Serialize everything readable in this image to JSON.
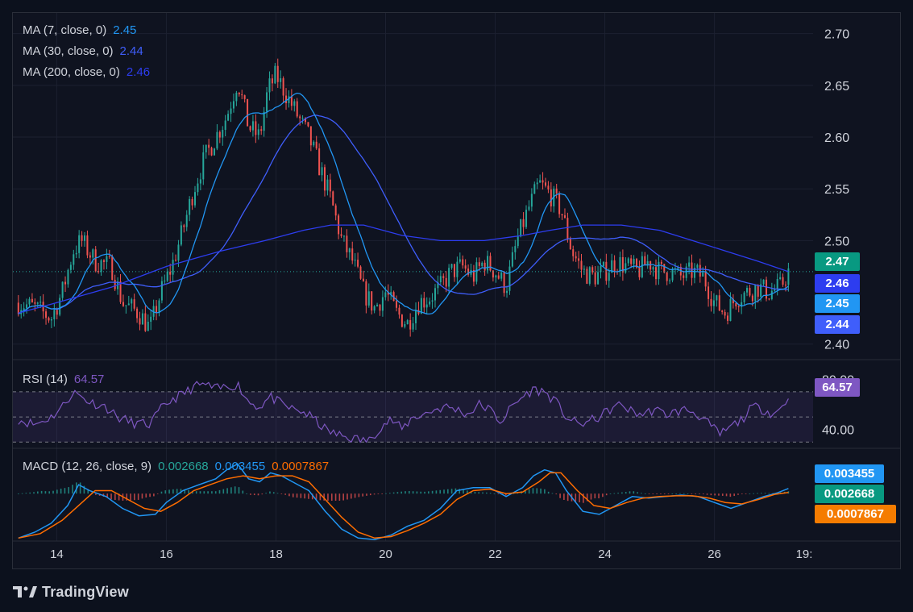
{
  "chart_data": [
    {
      "type": "candlestick",
      "ylim": [
        2.385,
        2.72
      ],
      "yticks": [
        "2.70",
        "2.65",
        "2.60",
        "2.55",
        "2.50",
        "2.40"
      ],
      "xticks": [
        "14",
        "16",
        "18",
        "20",
        "22",
        "24",
        "26",
        "19:"
      ],
      "last_close": 2.47,
      "grid": true,
      "close_path": [
        [
          13.3,
          2.44
        ],
        [
          13.6,
          2.435
        ],
        [
          13.9,
          2.425
        ],
        [
          14.1,
          2.45
        ],
        [
          14.3,
          2.49
        ],
        [
          14.45,
          2.5
        ],
        [
          14.7,
          2.48
        ],
        [
          15.0,
          2.475
        ],
        [
          15.2,
          2.44
        ],
        [
          15.5,
          2.43
        ],
        [
          15.7,
          2.415
        ],
        [
          15.9,
          2.45
        ],
        [
          16.1,
          2.475
        ],
        [
          16.3,
          2.51
        ],
        [
          16.5,
          2.55
        ],
        [
          16.7,
          2.58
        ],
        [
          16.9,
          2.6
        ],
        [
          17.1,
          2.62
        ],
        [
          17.3,
          2.655
        ],
        [
          17.5,
          2.61
        ],
        [
          17.7,
          2.6
        ],
        [
          17.85,
          2.645
        ],
        [
          18.0,
          2.66
        ],
        [
          18.2,
          2.64
        ],
        [
          18.4,
          2.62
        ],
        [
          18.6,
          2.6
        ],
        [
          18.8,
          2.57
        ],
        [
          19.0,
          2.54
        ],
        [
          19.2,
          2.5
        ],
        [
          19.4,
          2.48
        ],
        [
          19.6,
          2.45
        ],
        [
          19.8,
          2.435
        ],
        [
          20.0,
          2.45
        ],
        [
          20.2,
          2.43
        ],
        [
          20.4,
          2.42
        ],
        [
          20.6,
          2.44
        ],
        [
          20.8,
          2.445
        ],
        [
          21.0,
          2.455
        ],
        [
          21.2,
          2.47
        ],
        [
          21.4,
          2.475
        ],
        [
          21.6,
          2.465
        ],
        [
          21.8,
          2.48
        ],
        [
          22.0,
          2.47
        ],
        [
          22.2,
          2.455
        ],
        [
          22.4,
          2.5
        ],
        [
          22.6,
          2.53
        ],
        [
          22.8,
          2.555
        ],
        [
          23.0,
          2.545
        ],
        [
          23.2,
          2.53
        ],
        [
          23.4,
          2.49
        ],
        [
          23.6,
          2.47
        ],
        [
          23.8,
          2.465
        ],
        [
          24.0,
          2.47
        ],
        [
          24.2,
          2.48
        ],
        [
          24.4,
          2.475
        ],
        [
          24.6,
          2.47
        ],
        [
          24.8,
          2.48
        ],
        [
          25.0,
          2.47
        ],
        [
          25.2,
          2.47
        ],
        [
          25.4,
          2.465
        ],
        [
          25.6,
          2.47
        ],
        [
          25.8,
          2.465
        ],
        [
          26.0,
          2.44
        ],
        [
          26.2,
          2.43
        ],
        [
          26.4,
          2.445
        ],
        [
          26.6,
          2.45
        ],
        [
          26.8,
          2.455
        ],
        [
          27.0,
          2.45
        ],
        [
          27.2,
          2.455
        ],
        [
          27.35,
          2.47
        ]
      ],
      "series": [
        {
          "name": "MA (7, close, 0)",
          "value": 2.45,
          "color": "#2196f3",
          "window": 3
        },
        {
          "name": "MA (30, close, 0)",
          "value": 2.44,
          "color": "#3f5efb",
          "window": 10
        },
        {
          "name": "MA (200, close, 0)",
          "value": 2.46,
          "color": "#2d3df0",
          "points": [
            [
              13.3,
              2.43
            ],
            [
              14.0,
              2.44
            ],
            [
              15.0,
              2.455
            ],
            [
              16.0,
              2.475
            ],
            [
              17.0,
              2.49
            ],
            [
              17.8,
              2.5
            ],
            [
              18.5,
              2.51
            ],
            [
              19.0,
              2.515
            ],
            [
              19.6,
              2.515
            ],
            [
              20.3,
              2.505
            ],
            [
              21.0,
              2.5
            ],
            [
              21.8,
              2.5
            ],
            [
              22.5,
              2.505
            ],
            [
              23.0,
              2.51
            ],
            [
              23.6,
              2.515
            ],
            [
              24.3,
              2.515
            ],
            [
              25.0,
              2.51
            ],
            [
              25.6,
              2.5
            ],
            [
              26.2,
              2.49
            ],
            [
              26.8,
              2.48
            ],
            [
              27.35,
              2.47
            ]
          ]
        }
      ],
      "last_price_label": "2.47",
      "price_labels": [
        "2.46",
        "2.45",
        "2.44"
      ]
    },
    {
      "type": "line",
      "name": "RSI (14)",
      "value": 64.57,
      "value_label": "64.57",
      "color": "#7e57c2",
      "yticks": [
        "80.00",
        "40.00"
      ],
      "ylim": [
        25,
        95
      ],
      "bands": [
        70,
        50,
        30
      ],
      "points": [
        [
          13.3,
          48
        ],
        [
          13.6,
          44
        ],
        [
          13.9,
          50
        ],
        [
          14.1,
          58
        ],
        [
          14.3,
          70
        ],
        [
          14.6,
          62
        ],
        [
          14.9,
          58
        ],
        [
          15.1,
          50
        ],
        [
          15.4,
          45
        ],
        [
          15.7,
          44
        ],
        [
          15.9,
          56
        ],
        [
          16.1,
          64
        ],
        [
          16.3,
          68
        ],
        [
          16.5,
          74
        ],
        [
          16.7,
          76
        ],
        [
          16.9,
          72
        ],
        [
          17.1,
          74
        ],
        [
          17.3,
          76
        ],
        [
          17.5,
          62
        ],
        [
          17.7,
          58
        ],
        [
          17.9,
          66
        ],
        [
          18.1,
          60
        ],
        [
          18.3,
          56
        ],
        [
          18.5,
          54
        ],
        [
          18.7,
          48
        ],
        [
          18.9,
          40
        ],
        [
          19.1,
          36
        ],
        [
          19.3,
          34
        ],
        [
          19.5,
          32
        ],
        [
          19.7,
          31
        ],
        [
          19.9,
          42
        ],
        [
          20.1,
          48
        ],
        [
          20.3,
          40
        ],
        [
          20.5,
          50
        ],
        [
          20.7,
          52
        ],
        [
          20.9,
          56
        ],
        [
          21.1,
          58
        ],
        [
          21.3,
          56
        ],
        [
          21.5,
          52
        ],
        [
          21.7,
          60
        ],
        [
          21.9,
          56
        ],
        [
          22.1,
          46
        ],
        [
          22.3,
          58
        ],
        [
          22.5,
          66
        ],
        [
          22.7,
          72
        ],
        [
          22.9,
          70
        ],
        [
          23.1,
          62
        ],
        [
          23.3,
          50
        ],
        [
          23.5,
          44
        ],
        [
          23.7,
          46
        ],
        [
          23.9,
          50
        ],
        [
          24.1,
          56
        ],
        [
          24.3,
          60
        ],
        [
          24.5,
          54
        ],
        [
          24.7,
          52
        ],
        [
          24.9,
          56
        ],
        [
          25.1,
          52
        ],
        [
          25.3,
          54
        ],
        [
          25.5,
          56
        ],
        [
          25.7,
          52
        ],
        [
          25.9,
          44
        ],
        [
          26.1,
          36
        ],
        [
          26.3,
          42
        ],
        [
          26.5,
          48
        ],
        [
          26.7,
          58
        ],
        [
          26.9,
          56
        ],
        [
          27.1,
          52
        ],
        [
          27.35,
          64.57
        ]
      ]
    },
    {
      "type": "bar+line",
      "name": "MACD (12, 26, close, 9)",
      "values": {
        "histogram": "0.002668",
        "macd": "0.003455",
        "signal": "0.0007867"
      },
      "colors": {
        "histogram": "#26a69a",
        "macd": "#2196f3",
        "signal": "#ff6d00"
      },
      "ylim": [
        -0.032,
        0.03
      ],
      "series": [
        {
          "name": "macd",
          "value": 0.003455,
          "points": [
            [
              13.3,
              -0.03
            ],
            [
              13.6,
              -0.026
            ],
            [
              13.9,
              -0.02
            ],
            [
              14.2,
              -0.008
            ],
            [
              14.4,
              0.006
            ],
            [
              14.6,
              0.002
            ],
            [
              14.9,
              -0.002
            ],
            [
              15.2,
              -0.01
            ],
            [
              15.5,
              -0.015
            ],
            [
              15.8,
              -0.014
            ],
            [
              16.0,
              -0.006
            ],
            [
              16.3,
              0.002
            ],
            [
              16.6,
              0.006
            ],
            [
              16.9,
              0.01
            ],
            [
              17.1,
              0.016
            ],
            [
              17.3,
              0.02
            ],
            [
              17.5,
              0.01
            ],
            [
              17.7,
              0.008
            ],
            [
              17.9,
              0.014
            ],
            [
              18.1,
              0.012
            ],
            [
              18.3,
              0.008
            ],
            [
              18.6,
              0.002
            ],
            [
              18.9,
              -0.012
            ],
            [
              19.2,
              -0.024
            ],
            [
              19.5,
              -0.03
            ],
            [
              19.8,
              -0.031
            ],
            [
              20.1,
              -0.028
            ],
            [
              20.4,
              -0.022
            ],
            [
              20.7,
              -0.018
            ],
            [
              21.0,
              -0.01
            ],
            [
              21.3,
              0.002
            ],
            [
              21.6,
              0.004
            ],
            [
              21.9,
              0.004
            ],
            [
              22.2,
              -0.002
            ],
            [
              22.5,
              0.004
            ],
            [
              22.7,
              0.012
            ],
            [
              22.9,
              0.016
            ],
            [
              23.1,
              0.014
            ],
            [
              23.3,
              0.002
            ],
            [
              23.6,
              -0.012
            ],
            [
              23.9,
              -0.014
            ],
            [
              24.2,
              -0.008
            ],
            [
              24.5,
              -0.002
            ],
            [
              24.8,
              -0.003
            ],
            [
              25.1,
              -0.002
            ],
            [
              25.4,
              -0.001
            ],
            [
              25.7,
              -0.002
            ],
            [
              26.0,
              -0.006
            ],
            [
              26.3,
              -0.01
            ],
            [
              26.6,
              -0.006
            ],
            [
              26.9,
              -0.002
            ],
            [
              27.15,
              0.0005
            ],
            [
              27.35,
              0.003455
            ]
          ]
        },
        {
          "name": "signal",
          "value": 0.0007867,
          "points": [
            [
              13.3,
              -0.03
            ],
            [
              13.7,
              -0.027
            ],
            [
              14.1,
              -0.018
            ],
            [
              14.4,
              -0.008
            ],
            [
              14.7,
              0.002
            ],
            [
              15.0,
              0.002
            ],
            [
              15.3,
              -0.004
            ],
            [
              15.6,
              -0.01
            ],
            [
              15.9,
              -0.012
            ],
            [
              16.2,
              -0.006
            ],
            [
              16.5,
              0.002
            ],
            [
              16.8,
              0.006
            ],
            [
              17.1,
              0.01
            ],
            [
              17.4,
              0.012
            ],
            [
              17.7,
              0.01
            ],
            [
              18.0,
              0.012
            ],
            [
              18.3,
              0.012
            ],
            [
              18.6,
              0.008
            ],
            [
              18.9,
              -0.004
            ],
            [
              19.2,
              -0.016
            ],
            [
              19.5,
              -0.026
            ],
            [
              19.8,
              -0.03
            ],
            [
              20.1,
              -0.029
            ],
            [
              20.4,
              -0.025
            ],
            [
              20.7,
              -0.02
            ],
            [
              21.0,
              -0.014
            ],
            [
              21.3,
              -0.004
            ],
            [
              21.6,
              0.002
            ],
            [
              21.9,
              0.003
            ],
            [
              22.2,
              0.0
            ],
            [
              22.5,
              0.001
            ],
            [
              22.8,
              0.008
            ],
            [
              23.0,
              0.014
            ],
            [
              23.2,
              0.014
            ],
            [
              23.5,
              0.002
            ],
            [
              23.8,
              -0.008
            ],
            [
              24.1,
              -0.01
            ],
            [
              24.4,
              -0.006
            ],
            [
              24.7,
              -0.003
            ],
            [
              25.0,
              -0.002
            ],
            [
              25.3,
              -0.0015
            ],
            [
              25.6,
              -0.0015
            ],
            [
              25.9,
              -0.003
            ],
            [
              26.2,
              -0.006
            ],
            [
              26.5,
              -0.007
            ],
            [
              26.8,
              -0.004
            ],
            [
              27.1,
              -0.0005
            ],
            [
              27.35,
              0.0007867
            ]
          ]
        }
      ],
      "labels": [
        "0.003455",
        "0.002668",
        "0.0007867"
      ]
    }
  ],
  "legend": {
    "ma7": {
      "label": "MA (7, close, 0)",
      "value": "2.45"
    },
    "ma30": {
      "label": "MA (30, close, 0)",
      "value": "2.44"
    },
    "ma200": {
      "label": "MA (200, close, 0)",
      "value": "2.46"
    }
  },
  "rsi_legend": {
    "label": "RSI (14)",
    "value": "64.57"
  },
  "macd_legend": {
    "label": "MACD (12, 26, close, 9)",
    "hist": "0.002668",
    "macd": "0.003455",
    "signal": "0.0007867"
  },
  "colors": {
    "up": "#26a69a",
    "down": "#ef5350",
    "ma7": "#2196f3",
    "ma30": "#3f5efb",
    "ma200": "#2d3df0",
    "rsi": "#7e57c2",
    "macd": "#2196f3",
    "signal": "#ff6d00",
    "background": "#0f1320"
  },
  "brand": {
    "name": "TradingView",
    "icon": "tradingview-logo-icon"
  }
}
